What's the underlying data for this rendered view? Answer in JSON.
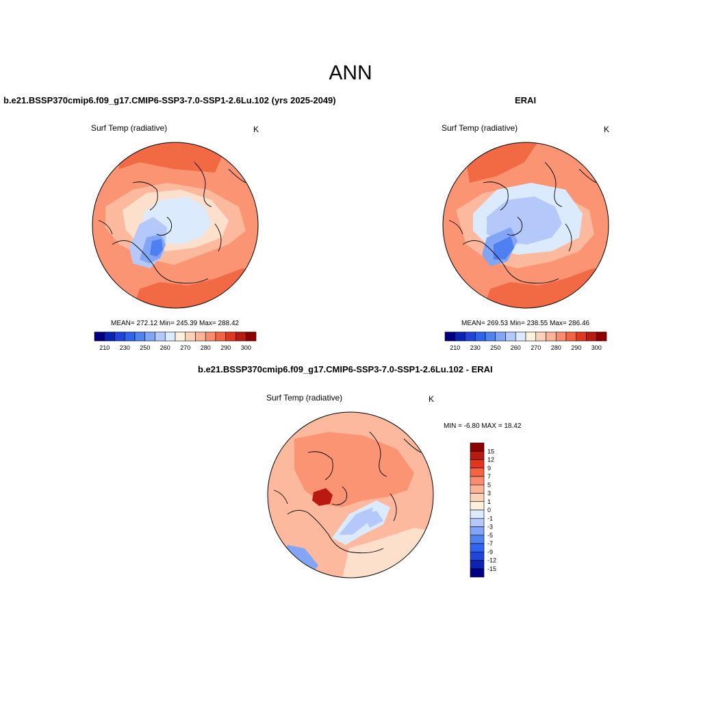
{
  "figure": {
    "title": "ANN"
  },
  "panels": [
    {
      "title": "b.e21.BSSP370cmip6.f09_g17.CMIP6-SSP3-7.0-SSP1-2.6Lu.102 (yrs 2025-2049)",
      "variable": "Surf Temp (radiative)",
      "units": "K",
      "stats": "MEAN= 272.12  Min= 245.39  Max= 288.42"
    },
    {
      "title": "ERAI",
      "variable": "Surf Temp (radiative)",
      "units": "K",
      "stats": "MEAN= 269.53  Min= 238.55  Max= 286.46"
    },
    {
      "title": "b.e21.BSSP370cmip6.f09_g17.CMIP6-SSP3-7.0-SSP1-2.6Lu.102 - ERAI",
      "variable": "Surf Temp (radiative)",
      "units": "K",
      "stats": "MIN =  -6.80 MAX =  18.42"
    }
  ],
  "colorbar_abs": {
    "colors": [
      "#000080",
      "#0a23b4",
      "#1e46dc",
      "#2d64f0",
      "#5082f0",
      "#82a5f5",
      "#b4c8fa",
      "#dceafd",
      "#fff0dc",
      "#fdd2b9",
      "#fcb496",
      "#fa8c6e",
      "#f56441",
      "#e1371e",
      "#b9190f",
      "#8c0000"
    ],
    "tick_labels": [
      "210",
      "230",
      "250",
      "260",
      "270",
      "280",
      "290",
      "300"
    ]
  },
  "colorbar_diff": {
    "colors": [
      "#000080",
      "#0a23b4",
      "#1e46dc",
      "#2d64f0",
      "#5082f0",
      "#82a5f5",
      "#b4c8fa",
      "#dceafd",
      "#fff0dc",
      "#fdd2b9",
      "#fcb496",
      "#fa8c6e",
      "#f56441",
      "#e1371e",
      "#b9190f",
      "#8c0000"
    ],
    "tick_labels": [
      "15",
      "12",
      "9",
      "7",
      "5",
      "3",
      "1",
      "0",
      "-1",
      "-3",
      "-5",
      "-7",
      "-9",
      "-12",
      "-15"
    ]
  },
  "map_colors": {
    "warm_dark": "#f26a44",
    "warm_mid": "#fa9473",
    "warm_light": "#fcb99e",
    "warm_pale": "#fde0cc",
    "cold_pale": "#dceafd",
    "cold_light": "#b4c8fa",
    "cold_mid": "#82a5f5",
    "cold_dark": "#4f7ff0",
    "red_deep": "#b9190f"
  }
}
